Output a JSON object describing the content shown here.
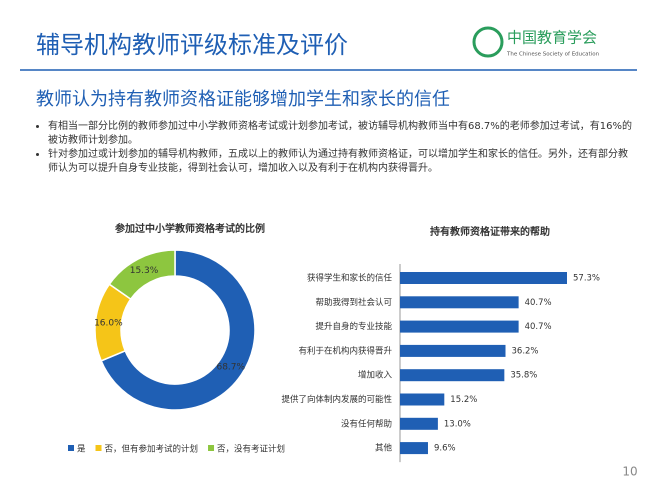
{
  "header": {
    "title": "辅导机构教师评级标准及评价",
    "logo_name": "中国教育学会",
    "logo_sub": "The Chinese Society of Education"
  },
  "subtitle": "教师认为持有教师资格证能够增加学生和家长的信任",
  "bullets": [
    "有相当一部分比例的教师参加过中小学教师资格考试或计划参加考试，被访辅导机构教师当中有68.7%的老师参加过考试，有16%的被访教师计划参加。",
    "针对参加过或计划参加的辅导机构教师，五成以上的教师认为通过持有教师资格证，可以增加学生和家长的信任。另外，还有部分教师认为可以提升自身专业技能，得到社会认可，增加收入以及有利于在机构内获得晋升。"
  ],
  "chart_data": [
    {
      "type": "donut",
      "title": "参加过中小学教师资格考试的比例",
      "categories": [
        "是",
        "否，但有参加考试的计划",
        "否，没有考证计划"
      ],
      "values": [
        68.7,
        16.0,
        15.3
      ],
      "value_labels": [
        "68.7%",
        "16.0%",
        "15.3%"
      ],
      "colors": [
        "#1f5fb4",
        "#f5c518",
        "#8dc63f"
      ],
      "legend": "bottom"
    },
    {
      "type": "hbar",
      "title": "持有教师资格证带来的帮助",
      "categories": [
        "获得学生和家长的信任",
        "帮助我得到社会认可",
        "提升自身的专业技能",
        "有利于在机构内获得晋升",
        "增加收入",
        "提供了向体制内发展的可能性",
        "没有任何帮助",
        "其他"
      ],
      "values": [
        57.3,
        40.7,
        40.7,
        36.2,
        35.8,
        15.2,
        13.0,
        9.6
      ],
      "value_labels": [
        "57.3%",
        "40.7%",
        "40.7%",
        "36.2%",
        "35.8%",
        "15.2%",
        "13.0%",
        "9.6%"
      ],
      "color": "#1f5fb4"
    }
  ],
  "page_number": "10"
}
